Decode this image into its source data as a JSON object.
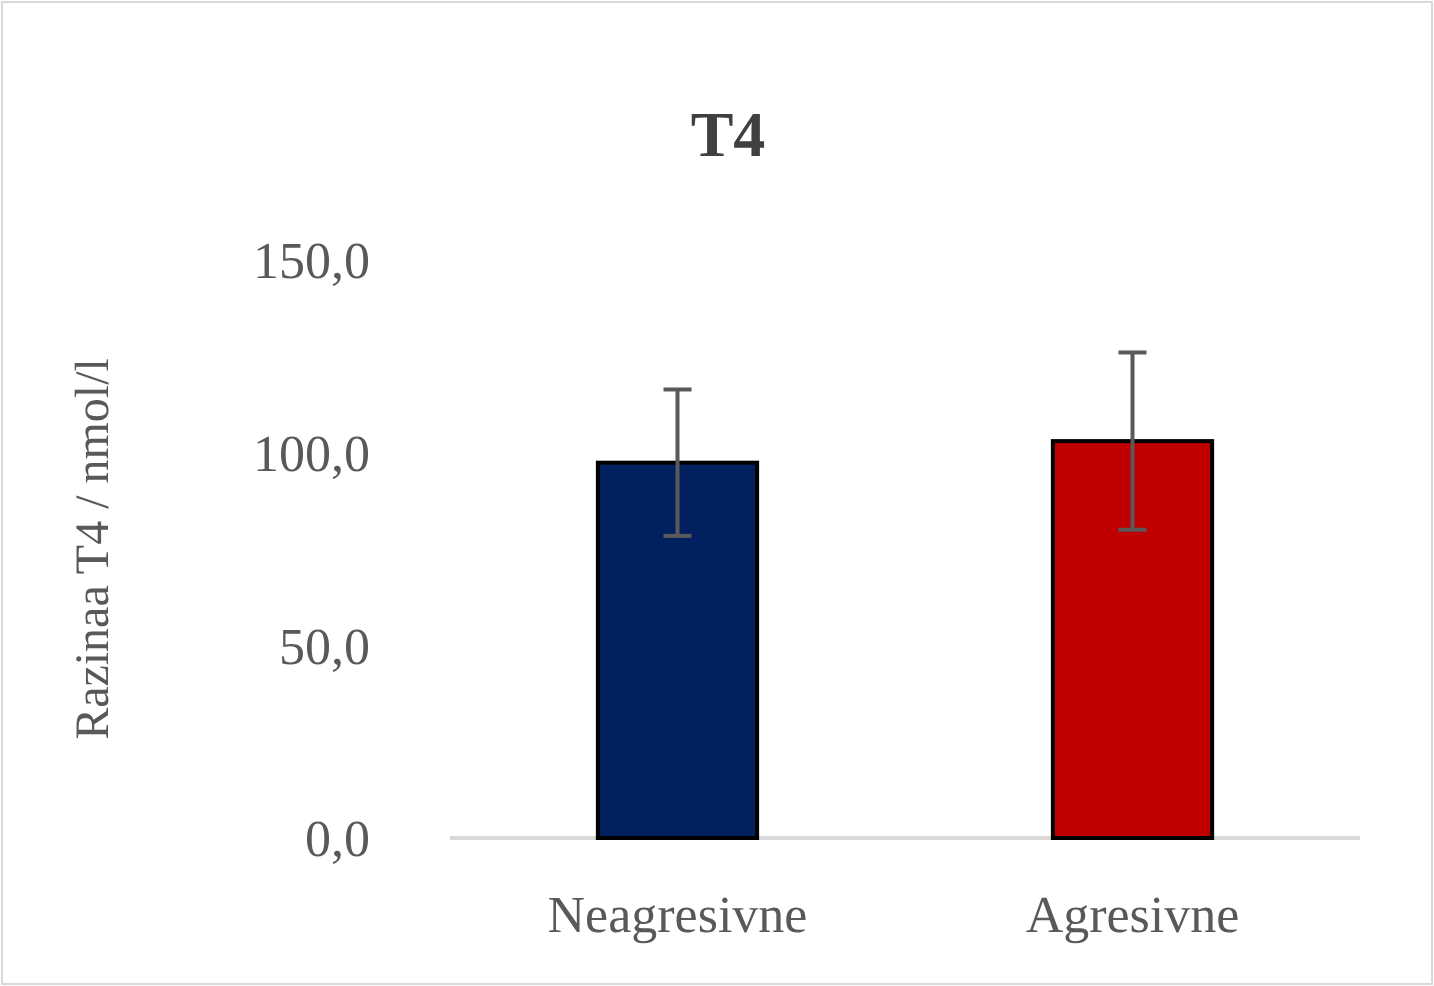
{
  "chart_data": {
    "type": "bar",
    "title": "T4",
    "ylabel": "Razinaa T4 / nmol/l",
    "categories": [
      "Neagresivne",
      "Agresivne"
    ],
    "values": [
      97.4,
      103
    ],
    "colors": [
      "#002060",
      "#c00000"
    ],
    "errors": [
      19,
      23
    ],
    "ylim": [
      0,
      150
    ],
    "yticks": [
      {
        "value": 0,
        "label": "0,0"
      },
      {
        "value": 50,
        "label": "50,0"
      },
      {
        "value": 100,
        "label": "100,0"
      },
      {
        "value": 150,
        "label": "150,0"
      }
    ],
    "grid": false
  }
}
